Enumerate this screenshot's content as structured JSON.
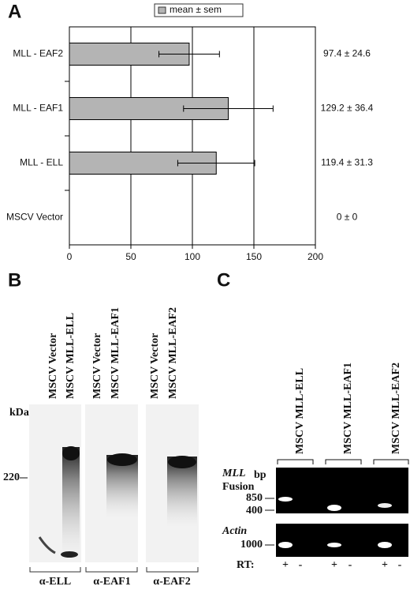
{
  "chart_data": {
    "type": "bar",
    "orientation": "horizontal",
    "panel": "A",
    "legend": "mean ± sem",
    "color": "#b4b4b4",
    "categories": [
      "MLL - EAF2",
      "MLL - EAF1",
      "MLL - ELL",
      "MSCV Vector"
    ],
    "values": [
      97.4,
      129.2,
      119.4,
      0
    ],
    "errors": [
      24.6,
      36.4,
      31.3,
      0
    ],
    "value_labels": [
      "97.4 ± 24.6",
      "129.2 ± 36.4",
      "119.4 ± 31.3",
      "0 ± 0"
    ],
    "xlim": [
      0,
      200
    ],
    "xticks": [
      0,
      50,
      100,
      150,
      200
    ],
    "grid": true
  },
  "panel_b": {
    "label": "B",
    "lanes": [
      "MSCV Vector",
      "MSCV MLL-ELL",
      "MSCV Vector",
      "MSCV MLL-EAF1",
      "MSCV Vector",
      "MSCV MLL-EAF2"
    ],
    "unit": "kDa",
    "marker": "220",
    "antibodies": [
      "α-ELL",
      "α-EAF1",
      "α-EAF2"
    ]
  },
  "panel_c": {
    "label": "C",
    "lanes": [
      "MSCV MLL-ELL",
      "MSCV MLL-EAF1",
      "MSCV MLL-EAF2"
    ],
    "gene": "MLL",
    "fusion": "Fusion",
    "unit": "bp",
    "markers_top": [
      "850",
      "400"
    ],
    "actin": "Actin",
    "marker_bottom": "1000",
    "rt": "RT:",
    "signs": [
      "+",
      "-",
      "+",
      "-",
      "+",
      "-"
    ]
  }
}
